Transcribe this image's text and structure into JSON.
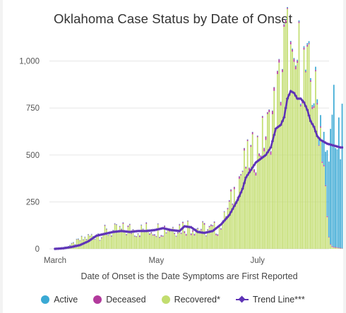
{
  "chart_data": {
    "type": "bar",
    "title": "Oklahoma Case Status by Date of Onset",
    "xlabel": "Date of Onset is the Date Symptoms are First Reported",
    "ylabel": "",
    "ylim": [
      0,
      1100
    ],
    "y_ticks": [
      {
        "value": 0,
        "label": "0"
      },
      {
        "value": 250,
        "label": "250"
      },
      {
        "value": 500,
        "label": "500"
      },
      {
        "value": 750,
        "label": "750"
      },
      {
        "value": 1000,
        "label": "1,000"
      }
    ],
    "x_ticks": [
      {
        "day": 0,
        "label": "March"
      },
      {
        "day": 61,
        "label": "May"
      },
      {
        "day": 122,
        "label": "July"
      }
    ],
    "x_range_days": [
      0,
      172
    ],
    "stacked": true,
    "grid": true,
    "legend_position": "bottom",
    "colors": {
      "active": "#3aa9d4",
      "deceased": "#b23a9c",
      "recovered": "#c2dd6f",
      "trend": "#5e33b6"
    },
    "series": [
      {
        "name": "Active",
        "key": "active",
        "kind": "bar",
        "points": [
          [
            135,
            2
          ],
          [
            140,
            4
          ],
          [
            145,
            5
          ],
          [
            150,
            8
          ],
          [
            155,
            12
          ],
          [
            158,
            20
          ],
          [
            160,
            60
          ],
          [
            162,
            160
          ],
          [
            163,
            250
          ],
          [
            164,
            310
          ],
          [
            165,
            330
          ],
          [
            166,
            520
          ],
          [
            167,
            700
          ],
          [
            168,
            800
          ],
          [
            169,
            650
          ],
          [
            170,
            560
          ],
          [
            171,
            540
          ],
          [
            172,
            520
          ],
          [
            173,
            600
          ],
          [
            174,
            560
          ],
          [
            175,
            450
          ],
          [
            176,
            380
          ],
          [
            177,
            350
          ],
          [
            178,
            360
          ],
          [
            179,
            480
          ],
          [
            180,
            680
          ],
          [
            181,
            300
          ],
          [
            182,
            120
          ],
          [
            183,
            40
          ]
        ]
      },
      {
        "name": "Deceased",
        "key": "deceased",
        "kind": "bar",
        "points": [
          [
            0,
            0
          ],
          [
            20,
            2
          ],
          [
            40,
            4
          ],
          [
            60,
            6
          ],
          [
            80,
            6
          ],
          [
            100,
            5
          ],
          [
            110,
            8
          ],
          [
            120,
            12
          ],
          [
            130,
            14
          ],
          [
            140,
            12
          ],
          [
            150,
            10
          ],
          [
            160,
            6
          ],
          [
            170,
            3
          ],
          [
            183,
            0
          ]
        ]
      },
      {
        "name": "Recovered*",
        "key": "recovered",
        "kind": "bar",
        "points": [
          [
            0,
            2
          ],
          [
            5,
            6
          ],
          [
            10,
            20
          ],
          [
            15,
            45
          ],
          [
            20,
            60
          ],
          [
            25,
            75
          ],
          [
            30,
            85
          ],
          [
            35,
            90
          ],
          [
            40,
            95
          ],
          [
            45,
            100
          ],
          [
            50,
            95
          ],
          [
            55,
            100
          ],
          [
            60,
            100
          ],
          [
            65,
            105
          ],
          [
            70,
            110
          ],
          [
            75,
            115
          ],
          [
            80,
            120
          ],
          [
            85,
            110
          ],
          [
            90,
            100
          ],
          [
            93,
            95
          ],
          [
            96,
            100
          ],
          [
            100,
            130
          ],
          [
            103,
            180
          ],
          [
            106,
            250
          ],
          [
            109,
            320
          ],
          [
            112,
            400
          ],
          [
            115,
            450
          ],
          [
            118,
            480
          ],
          [
            121,
            520
          ],
          [
            124,
            560
          ],
          [
            127,
            600
          ],
          [
            130,
            660
          ],
          [
            133,
            760
          ],
          [
            136,
            900
          ],
          [
            138,
            1040
          ],
          [
            140,
            1080
          ],
          [
            142,
            980
          ],
          [
            144,
            820
          ],
          [
            146,
            1000
          ],
          [
            148,
            1000
          ],
          [
            150,
            960
          ],
          [
            152,
            900
          ],
          [
            154,
            880
          ],
          [
            156,
            820
          ],
          [
            158,
            750
          ],
          [
            160,
            640
          ],
          [
            162,
            450
          ],
          [
            163,
            300
          ],
          [
            164,
            150
          ],
          [
            165,
            60
          ],
          [
            166,
            20
          ],
          [
            168,
            6
          ],
          [
            172,
            2
          ],
          [
            183,
            0
          ]
        ]
      },
      {
        "name": "Trend Line***",
        "key": "trend",
        "kind": "line",
        "points": [
          [
            0,
            0
          ],
          [
            5,
            3
          ],
          [
            10,
            10
          ],
          [
            15,
            20
          ],
          [
            20,
            40
          ],
          [
            25,
            70
          ],
          [
            30,
            80
          ],
          [
            35,
            90
          ],
          [
            40,
            95
          ],
          [
            45,
            90
          ],
          [
            50,
            95
          ],
          [
            55,
            95
          ],
          [
            60,
            100
          ],
          [
            65,
            110
          ],
          [
            70,
            100
          ],
          [
            75,
            95
          ],
          [
            78,
            120
          ],
          [
            82,
            115
          ],
          [
            86,
            90
          ],
          [
            90,
            85
          ],
          [
            95,
            95
          ],
          [
            100,
            130
          ],
          [
            105,
            180
          ],
          [
            110,
            260
          ],
          [
            113,
            320
          ],
          [
            115,
            380
          ],
          [
            118,
            420
          ],
          [
            121,
            460
          ],
          [
            124,
            480
          ],
          [
            127,
            500
          ],
          [
            130,
            540
          ],
          [
            133,
            640
          ],
          [
            136,
            660
          ],
          [
            138,
            700
          ],
          [
            140,
            800
          ],
          [
            142,
            840
          ],
          [
            144,
            830
          ],
          [
            146,
            800
          ],
          [
            148,
            800
          ],
          [
            150,
            780
          ],
          [
            152,
            740
          ],
          [
            154,
            680
          ],
          [
            156,
            650
          ],
          [
            158,
            600
          ],
          [
            160,
            580
          ],
          [
            162,
            570
          ],
          [
            164,
            560
          ],
          [
            166,
            555
          ],
          [
            168,
            550
          ],
          [
            170,
            545
          ],
          [
            172,
            540
          ],
          [
            174,
            540
          ],
          [
            176,
            545
          ],
          [
            178,
            540
          ],
          [
            180,
            540
          ],
          [
            182,
            530
          ]
        ]
      }
    ]
  }
}
